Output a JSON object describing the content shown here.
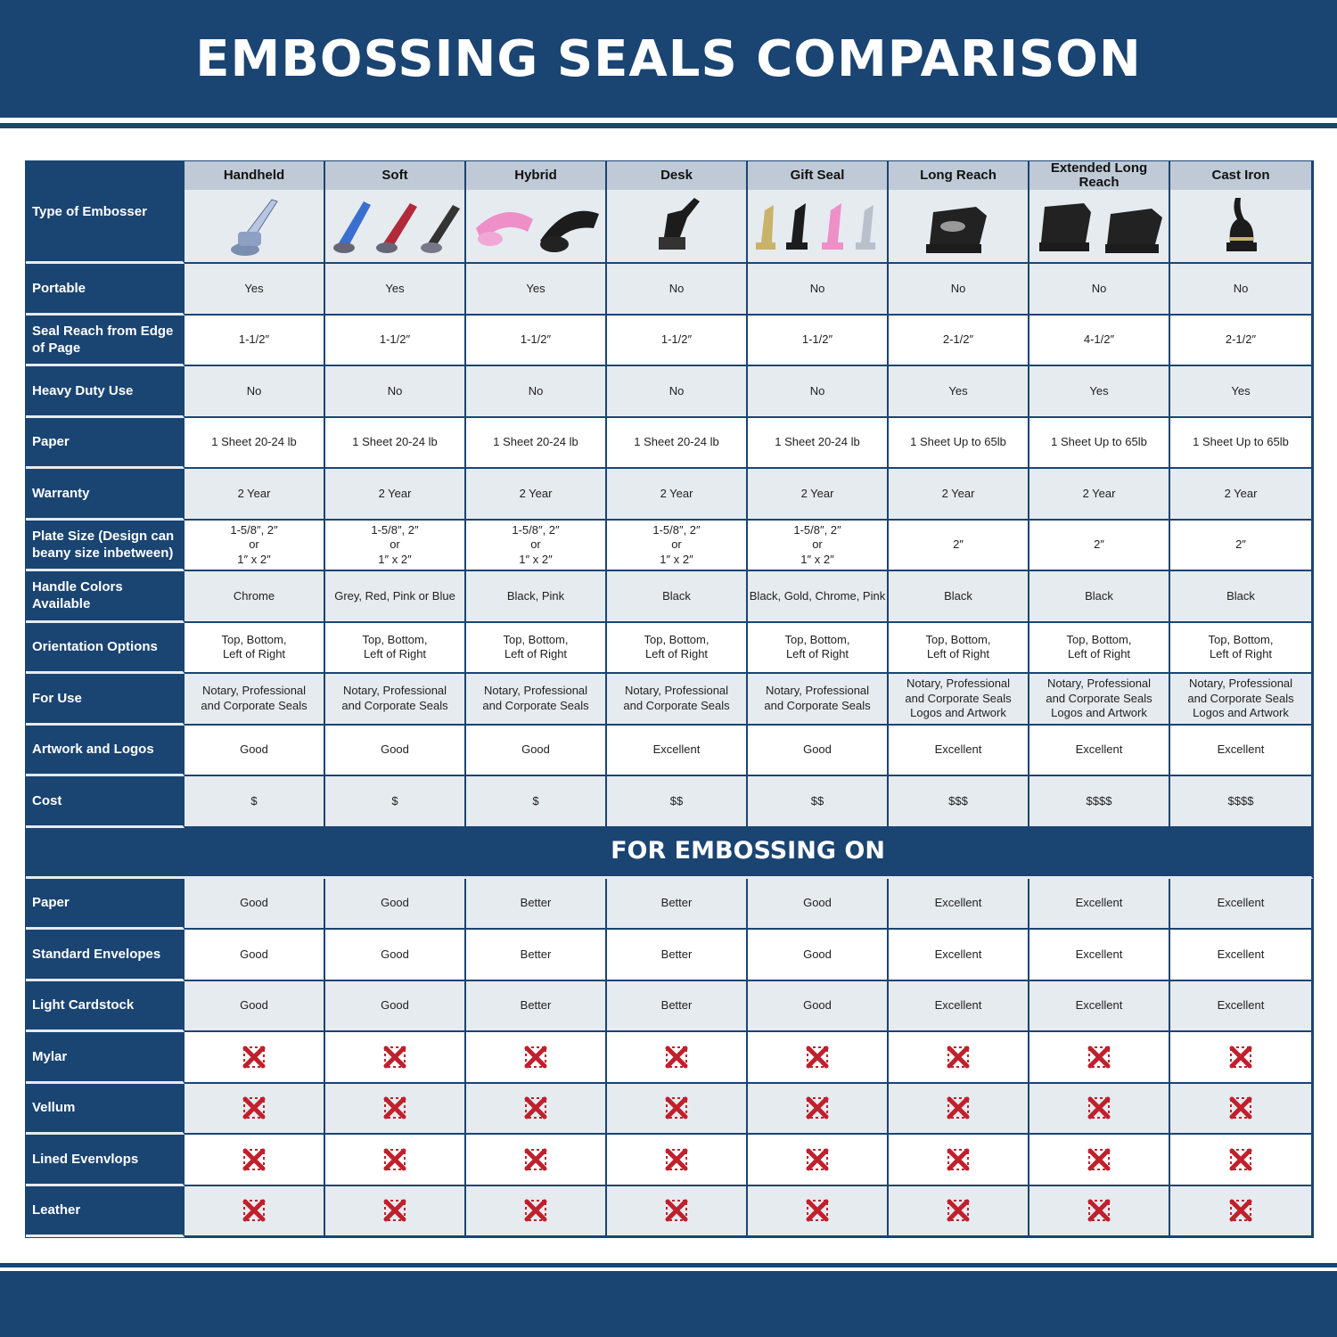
{
  "title": "EMBOSSING SEALS COMPARISON",
  "colors": {
    "brand_blue": "#1a4472",
    "row_light": "#e6ebf0",
    "header_grey": "#bfcad6",
    "x_red": "#c0202c"
  },
  "type_label": "Type of Embosser",
  "columns": [
    {
      "name": "Handheld",
      "image": "chrome-handheld-embosser"
    },
    {
      "name": "Soft",
      "image": "blue-red-grey-soft-embossers"
    },
    {
      "name": "Hybrid",
      "image": "pink-black-hybrid-embossers"
    },
    {
      "name": "Desk",
      "image": "black-desk-embosser"
    },
    {
      "name": "Gift Seal",
      "image": "gold-black-pink-chrome-gift-seals"
    },
    {
      "name": "Long Reach",
      "image": "black-long-reach-embosser"
    },
    {
      "name": "Extended Long Reach",
      "image": "two-black-extended-embossers"
    },
    {
      "name": "Cast Iron",
      "image": "black-cast-iron-embosser"
    }
  ],
  "rows": [
    {
      "label": "Portable",
      "values": [
        "Yes",
        "Yes",
        "Yes",
        "No",
        "No",
        "No",
        "No",
        "No"
      ]
    },
    {
      "label": "Seal Reach from Edge of Page",
      "values": [
        "1-1/2″",
        "1-1/2″",
        "1-1/2″",
        "1-1/2″",
        "1-1/2″",
        "2-1/2″",
        "4-1/2″",
        "2-1/2″"
      ]
    },
    {
      "label": "Heavy Duty Use",
      "values": [
        "No",
        "No",
        "No",
        "No",
        "No",
        "Yes",
        "Yes",
        "Yes"
      ]
    },
    {
      "label": "Paper",
      "values": [
        "1 Sheet 20-24 lb",
        "1 Sheet 20-24 lb",
        "1 Sheet 20-24 lb",
        "1 Sheet 20-24 lb",
        "1 Sheet 20-24 lb",
        "1 Sheet Up to 65lb",
        "1 Sheet Up to 65lb",
        "1 Sheet Up to 65lb"
      ]
    },
    {
      "label": "Warranty",
      "values": [
        "2 Year",
        "2 Year",
        "2 Year",
        "2 Year",
        "2 Year",
        "2 Year",
        "2 Year",
        "2 Year"
      ]
    },
    {
      "label": "Plate Size (Design can beany size inbetween)",
      "values": [
        "1-5/8″, 2″\nor\n1″ x 2″",
        "1-5/8″, 2″\nor\n1″ x 2″",
        "1-5/8″, 2″\nor\n1″ x 2″",
        "1-5/8″, 2″\nor\n1″ x 2″",
        "1-5/8″, 2″\nor\n1″ x 2″",
        "2″",
        "2″",
        "2″"
      ]
    },
    {
      "label": "Handle Colors Available",
      "values": [
        "Chrome",
        "Grey, Red, Pink or Blue",
        "Black, Pink",
        "Black",
        "Black, Gold, Chrome, Pink",
        "Black",
        "Black",
        "Black"
      ]
    },
    {
      "label": "Orientation Options",
      "values": [
        "Top, Bottom,\nLeft of Right",
        "Top, Bottom,\nLeft of Right",
        "Top, Bottom,\nLeft of Right",
        "Top, Bottom,\nLeft of Right",
        "Top, Bottom,\nLeft of Right",
        "Top, Bottom,\nLeft of Right",
        "Top, Bottom,\nLeft of Right",
        "Top, Bottom,\nLeft of Right"
      ]
    },
    {
      "label": "For Use",
      "values": [
        "Notary, Professional\nand Corporate Seals",
        "Notary, Professional\nand Corporate Seals",
        "Notary, Professional\nand Corporate Seals",
        "Notary, Professional\nand Corporate Seals",
        "Notary, Professional\nand Corporate Seals",
        "Notary, Professional\nand Corporate Seals\nLogos and Artwork",
        "Notary, Professional\nand Corporate Seals\nLogos and Artwork",
        "Notary, Professional\nand Corporate Seals\nLogos and Artwork"
      ]
    },
    {
      "label": "Artwork and Logos",
      "values": [
        "Good",
        "Good",
        "Good",
        "Excellent",
        "Good",
        "Excellent",
        "Excellent",
        "Excellent"
      ]
    },
    {
      "label": "Cost",
      "values": [
        "$",
        "$",
        "$",
        "$$",
        "$$",
        "$$$",
        "$$$$",
        "$$$$"
      ]
    }
  ],
  "section_title": "FOR EMBOSSING ON",
  "embossing_rows": [
    {
      "label": "Paper",
      "values": [
        "Good",
        "Good",
        "Better",
        "Better",
        "Good",
        "Excellent",
        "Excellent",
        "Excellent"
      ]
    },
    {
      "label": "Standard Envelopes",
      "values": [
        "Good",
        "Good",
        "Better",
        "Better",
        "Good",
        "Excellent",
        "Excellent",
        "Excellent"
      ]
    },
    {
      "label": "Light Cardstock",
      "values": [
        "Good",
        "Good",
        "Better",
        "Better",
        "Good",
        "Excellent",
        "Excellent",
        "Excellent"
      ]
    },
    {
      "label": "Mylar",
      "values": [
        "x-icon",
        "x-icon",
        "x-icon",
        "x-icon",
        "x-icon",
        "x-icon",
        "x-icon",
        "x-icon"
      ]
    },
    {
      "label": "Vellum",
      "values": [
        "x-icon",
        "x-icon",
        "x-icon",
        "x-icon",
        "x-icon",
        "x-icon",
        "x-icon",
        "x-icon"
      ]
    },
    {
      "label": "Lined Evenvlops",
      "values": [
        "x-icon",
        "x-icon",
        "x-icon",
        "x-icon",
        "x-icon",
        "x-icon",
        "x-icon",
        "x-icon"
      ]
    },
    {
      "label": "Leather",
      "values": [
        "x-icon",
        "x-icon",
        "x-icon",
        "x-icon",
        "x-icon",
        "x-icon",
        "x-icon",
        "x-icon"
      ]
    }
  ]
}
